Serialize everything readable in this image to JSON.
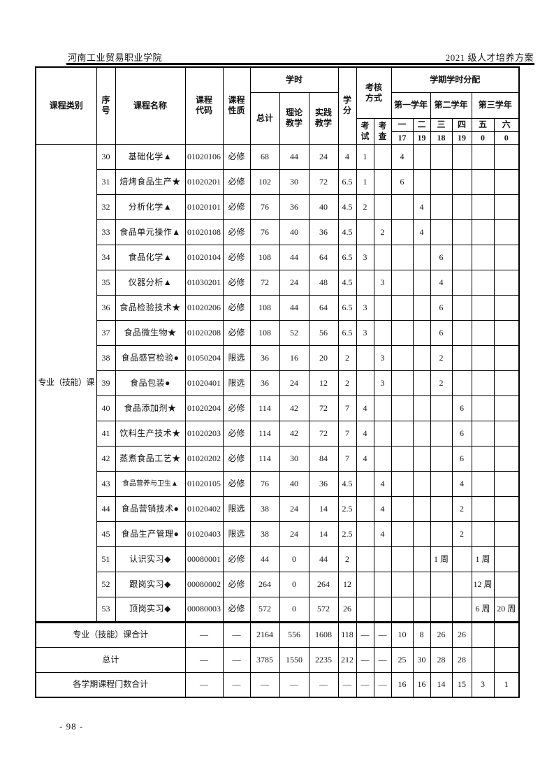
{
  "page": {
    "header_left": "河南工业贸易职业学院",
    "header_right": "2021 级人才培养方案",
    "page_number": "- 98 -"
  },
  "table": {
    "header": {
      "category": "课程类别",
      "seq": "序号",
      "course_name": "课程名称",
      "course_code": "课程代码",
      "course_nature": "课程性质",
      "hours": "学时",
      "hours_total": "总计",
      "hours_theory": "理论教学",
      "hours_practice": "实践教学",
      "credits": "学分",
      "assessment": "考核方式",
      "exam": "考试",
      "check": "考查",
      "semester_alloc": "学期学时分配",
      "year1": "第一学年",
      "year2": "第二学年",
      "year3": "第三学年",
      "semesters": [
        "一",
        "二",
        "三",
        "四",
        "五",
        "六"
      ],
      "semester_weeks": [
        "17",
        "19",
        "18",
        "19",
        "0",
        "0"
      ]
    },
    "category_label": "专业（技能）课",
    "rows": [
      {
        "seq": "30",
        "name": "基础化学▲",
        "code": "01020106",
        "nature": "必修",
        "total": "68",
        "theory": "44",
        "practice": "24",
        "credits": "4",
        "exam": "1",
        "check": "",
        "s1": "4",
        "s2": "",
        "s3": "",
        "s4": "",
        "s5": "",
        "s6": ""
      },
      {
        "seq": "31",
        "name": "焙烤食品生产★",
        "code": "01020201",
        "nature": "必修",
        "total": "102",
        "theory": "30",
        "practice": "72",
        "credits": "6.5",
        "exam": "1",
        "check": "",
        "s1": "6",
        "s2": "",
        "s3": "",
        "s4": "",
        "s5": "",
        "s6": ""
      },
      {
        "seq": "32",
        "name": "分析化学▲",
        "code": "01020101",
        "nature": "必修",
        "total": "76",
        "theory": "36",
        "practice": "40",
        "credits": "4.5",
        "exam": "2",
        "check": "",
        "s1": "",
        "s2": "4",
        "s3": "",
        "s4": "",
        "s5": "",
        "s6": ""
      },
      {
        "seq": "33",
        "name": "食品单元操作▲",
        "code": "01020108",
        "nature": "必修",
        "total": "76",
        "theory": "40",
        "practice": "36",
        "credits": "4.5",
        "exam": "",
        "check": "2",
        "s1": "",
        "s2": "4",
        "s3": "",
        "s4": "",
        "s5": "",
        "s6": ""
      },
      {
        "seq": "34",
        "name": "食品化学▲",
        "code": "01020104",
        "nature": "必修",
        "total": "108",
        "theory": "44",
        "practice": "64",
        "credits": "6.5",
        "exam": "3",
        "check": "",
        "s1": "",
        "s2": "",
        "s3": "6",
        "s4": "",
        "s5": "",
        "s6": ""
      },
      {
        "seq": "35",
        "name": "仪器分析▲",
        "code": "01030201",
        "nature": "必修",
        "total": "72",
        "theory": "24",
        "practice": "48",
        "credits": "4.5",
        "exam": "",
        "check": "3",
        "s1": "",
        "s2": "",
        "s3": "4",
        "s4": "",
        "s5": "",
        "s6": ""
      },
      {
        "seq": "36",
        "name": "食品检验技术★",
        "code": "01020206",
        "nature": "必修",
        "total": "108",
        "theory": "44",
        "practice": "64",
        "credits": "6.5",
        "exam": "3",
        "check": "",
        "s1": "",
        "s2": "",
        "s3": "6",
        "s4": "",
        "s5": "",
        "s6": ""
      },
      {
        "seq": "37",
        "name": "食品微生物★",
        "code": "01020208",
        "nature": "必修",
        "total": "108",
        "theory": "52",
        "practice": "56",
        "credits": "6.5",
        "exam": "3",
        "check": "",
        "s1": "",
        "s2": "",
        "s3": "6",
        "s4": "",
        "s5": "",
        "s6": ""
      },
      {
        "seq": "38",
        "name": "食品感官检验●",
        "code": "01050204",
        "nature": "限选",
        "total": "36",
        "theory": "16",
        "practice": "20",
        "credits": "2",
        "exam": "",
        "check": "3",
        "s1": "",
        "s2": "",
        "s3": "2",
        "s4": "",
        "s5": "",
        "s6": ""
      },
      {
        "seq": "39",
        "name": "食品包装●",
        "code": "01020401",
        "nature": "限选",
        "total": "36",
        "theory": "24",
        "practice": "12",
        "credits": "2",
        "exam": "",
        "check": "3",
        "s1": "",
        "s2": "",
        "s3": "2",
        "s4": "",
        "s5": "",
        "s6": ""
      },
      {
        "seq": "40",
        "name": "食品添加剂★",
        "code": "01020204",
        "nature": "必修",
        "total": "114",
        "theory": "42",
        "practice": "72",
        "credits": "7",
        "exam": "4",
        "check": "",
        "s1": "",
        "s2": "",
        "s3": "",
        "s4": "6",
        "s5": "",
        "s6": ""
      },
      {
        "seq": "41",
        "name": "饮料生产技术★",
        "code": "01020203",
        "nature": "必修",
        "total": "114",
        "theory": "42",
        "practice": "72",
        "credits": "7",
        "exam": "4",
        "check": "",
        "s1": "",
        "s2": "",
        "s3": "",
        "s4": "6",
        "s5": "",
        "s6": ""
      },
      {
        "seq": "42",
        "name": "蒸煮食品工艺★",
        "code": "01020202",
        "nature": "必修",
        "total": "114",
        "theory": "30",
        "practice": "84",
        "credits": "7",
        "exam": "4",
        "check": "",
        "s1": "",
        "s2": "",
        "s3": "",
        "s4": "6",
        "s5": "",
        "s6": ""
      },
      {
        "seq": "43",
        "name": "食品营养与卫生▲",
        "code": "01020105",
        "nature": "必修",
        "total": "76",
        "theory": "40",
        "practice": "36",
        "credits": "4.5",
        "exam": "",
        "check": "4",
        "s1": "",
        "s2": "",
        "s3": "",
        "s4": "4",
        "s5": "",
        "s6": ""
      },
      {
        "seq": "44",
        "name": "食品营销技术●",
        "code": "01020402",
        "nature": "限选",
        "total": "38",
        "theory": "24",
        "practice": "14",
        "credits": "2.5",
        "exam": "",
        "check": "4",
        "s1": "",
        "s2": "",
        "s3": "",
        "s4": "2",
        "s5": "",
        "s6": ""
      },
      {
        "seq": "45",
        "name": "食品生产管理●",
        "code": "01020403",
        "nature": "限选",
        "total": "38",
        "theory": "24",
        "practice": "14",
        "credits": "2.5",
        "exam": "",
        "check": "4",
        "s1": "",
        "s2": "",
        "s3": "",
        "s4": "2",
        "s5": "",
        "s6": ""
      },
      {
        "seq": "51",
        "name": "认识实习◆",
        "code": "00080001",
        "nature": "必修",
        "total": "44",
        "theory": "0",
        "practice": "44",
        "credits": "2",
        "exam": "",
        "check": "",
        "s1": "",
        "s2": "",
        "s3": "1 周",
        "s4": "",
        "s5": "1 周",
        "s6": ""
      },
      {
        "seq": "52",
        "name": "跟岗实习◆",
        "code": "00080002",
        "nature": "必修",
        "total": "264",
        "theory": "0",
        "practice": "264",
        "credits": "12",
        "exam": "",
        "check": "",
        "s1": "",
        "s2": "",
        "s3": "",
        "s4": "",
        "s5": "12 周",
        "s6": ""
      },
      {
        "seq": "53",
        "name": "顶岗实习◆",
        "code": "00080003",
        "nature": "必修",
        "total": "572",
        "theory": "0",
        "practice": "572",
        "credits": "26",
        "exam": "",
        "check": "",
        "s1": "",
        "s2": "",
        "s3": "",
        "s4": "",
        "s5": "6 周",
        "s6": "20 周"
      }
    ],
    "footer_rows": [
      {
        "label": "专业（技能）课合计",
        "code": "—",
        "nature": "—",
        "total": "2164",
        "theory": "556",
        "practice": "1608",
        "credits": "118",
        "exam": "—",
        "check": "—",
        "s1": "10",
        "s2": "8",
        "s3": "26",
        "s4": "26",
        "s5": "",
        "s6": ""
      },
      {
        "label": "总计",
        "code": "—",
        "nature": "—",
        "total": "3785",
        "theory": "1550",
        "practice": "2235",
        "credits": "212",
        "exam": "—",
        "check": "—",
        "s1": "25",
        "s2": "30",
        "s3": "28",
        "s4": "28",
        "s5": "",
        "s6": ""
      },
      {
        "label": "各学期课程门数合计",
        "code": "—",
        "nature": "—",
        "total": "—",
        "theory": "—",
        "practice": "—",
        "credits": "—",
        "exam": "—",
        "check": "—",
        "s1": "16",
        "s2": "16",
        "s3": "14",
        "s4": "15",
        "s5": "3",
        "s6": "1"
      }
    ]
  }
}
